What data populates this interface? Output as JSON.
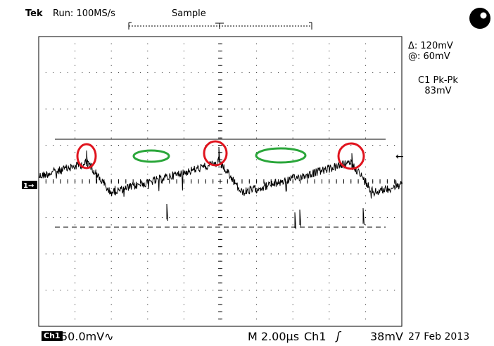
{
  "header": {
    "brand": "Tek",
    "run_status": "Run: 100MS/s",
    "acq_mode": "Sample"
  },
  "status_icon": "record-position-icon",
  "cursor_readout": {
    "delta": "Δ: 120mV",
    "at": "@: 60mV"
  },
  "measurement": {
    "label": "C1 Pk-Pk",
    "value": "83mV"
  },
  "footer": {
    "channel": "Ch1",
    "scale": "50.0mV∿",
    "time_base": "M 2.00µs",
    "trigger_source": "Ch1",
    "trigger_slope": "ʃ",
    "trigger_level": "38mV",
    "date": "27 Feb 2013"
  },
  "channel_marker": "1→",
  "trigger_marker": "←",
  "colors": {
    "trace": "#000000",
    "grid": "#000000",
    "annot_peak": "#e0141e",
    "annot_trough": "#2aa63a"
  }
}
